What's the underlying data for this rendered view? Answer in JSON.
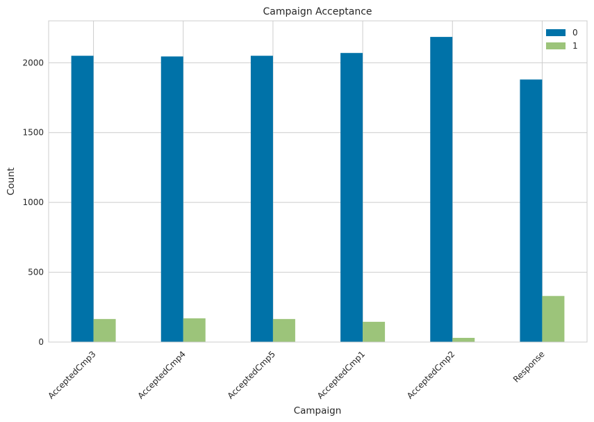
{
  "chart_data": {
    "type": "bar",
    "title": "Campaign Acceptance",
    "xlabel": "Campaign",
    "ylabel": "Count",
    "categories": [
      "AcceptedCmp3",
      "AcceptedCmp4",
      "AcceptedCmp5",
      "AcceptedCmp1",
      "AcceptedCmp2",
      "Response"
    ],
    "series": [
      {
        "name": "0",
        "color": "#0072a8",
        "values": [
          2050,
          2045,
          2050,
          2070,
          2185,
          1880
        ]
      },
      {
        "name": "1",
        "color": "#9cc47a",
        "values": [
          165,
          170,
          165,
          145,
          30,
          330
        ]
      }
    ],
    "ylim": [
      0,
      2300
    ],
    "yticks": [
      0,
      500,
      1000,
      1500,
      2000
    ],
    "grid": true,
    "legend_position": "top-right"
  }
}
